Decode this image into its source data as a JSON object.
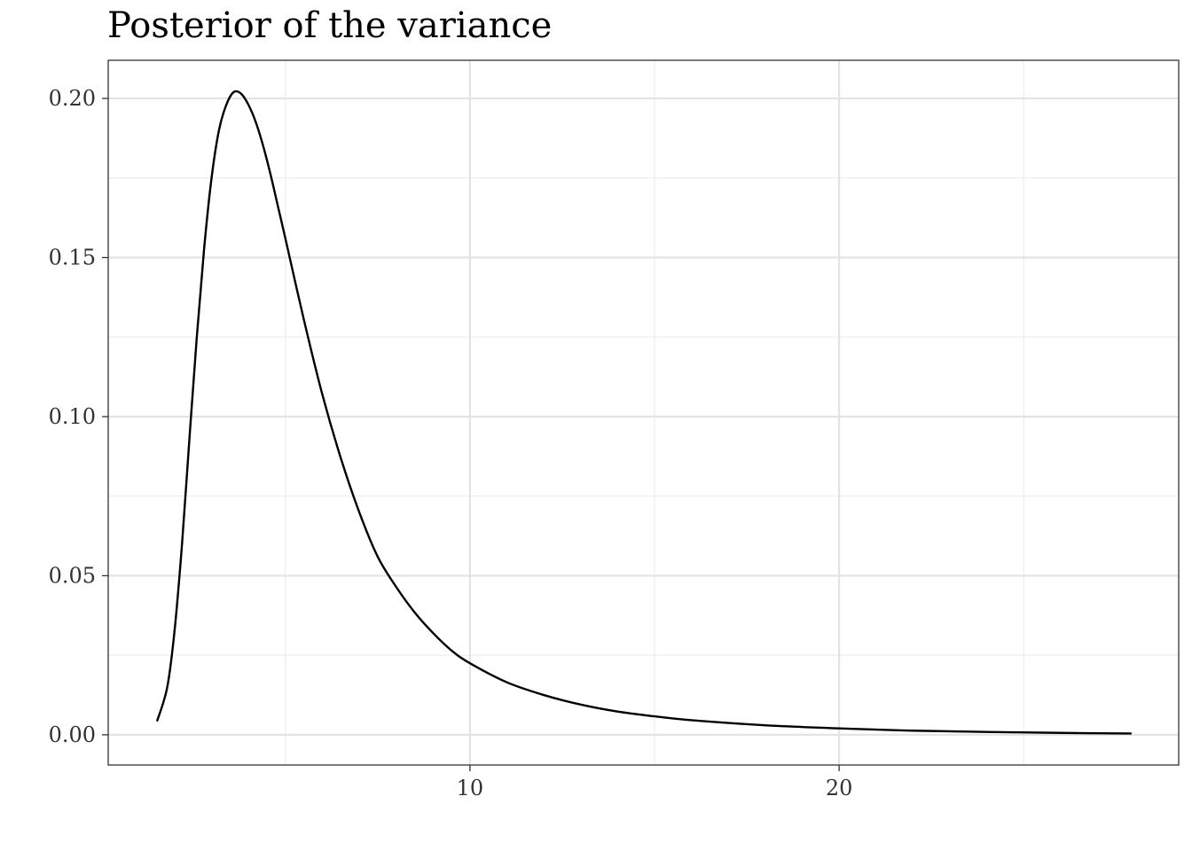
{
  "chart_data": {
    "type": "line",
    "title": "Posterior of the variance",
    "xlabel": "",
    "ylabel": "",
    "xlim": [
      0.2,
      29.2
    ],
    "ylim": [
      -0.0095,
      0.212
    ],
    "x_ticks": [
      10,
      20
    ],
    "x_tick_labels": [
      "10",
      "20"
    ],
    "x_minor_ticks": [
      5,
      15,
      25
    ],
    "y_ticks": [
      0.0,
      0.05,
      0.1,
      0.15,
      0.2
    ],
    "y_tick_labels": [
      "0.00",
      "0.05",
      "0.10",
      "0.15",
      "0.20"
    ],
    "y_minor_ticks": [
      0.025,
      0.075,
      0.125,
      0.175
    ],
    "grid": true,
    "line_color": "#000000",
    "series": [
      {
        "x": [
          1.53,
          1.8,
          2.0,
          2.2,
          2.4,
          2.6,
          2.8,
          3.0,
          3.2,
          3.4,
          3.6,
          3.8,
          4.0,
          4.2,
          4.4,
          4.6,
          4.8,
          5.0,
          5.5,
          6.0,
          6.5,
          7.0,
          7.5,
          8.0,
          8.5,
          9.0,
          9.5,
          10.0,
          11.0,
          12.0,
          13.0,
          14.0,
          15.0,
          16.0,
          18.0,
          20.0,
          22.0,
          24.0,
          26.0,
          27.9
        ],
        "y": [
          0.0045,
          0.015,
          0.033,
          0.06,
          0.093,
          0.125,
          0.153,
          0.175,
          0.19,
          0.198,
          0.202,
          0.2015,
          0.198,
          0.1925,
          0.185,
          0.176,
          0.166,
          0.156,
          0.1305,
          0.107,
          0.087,
          0.07,
          0.056,
          0.0465,
          0.0385,
          0.032,
          0.0265,
          0.0225,
          0.0165,
          0.0125,
          0.0095,
          0.0073,
          0.0058,
          0.0046,
          0.003,
          0.002,
          0.0013,
          0.0009,
          0.0006,
          0.0004
        ]
      }
    ]
  }
}
